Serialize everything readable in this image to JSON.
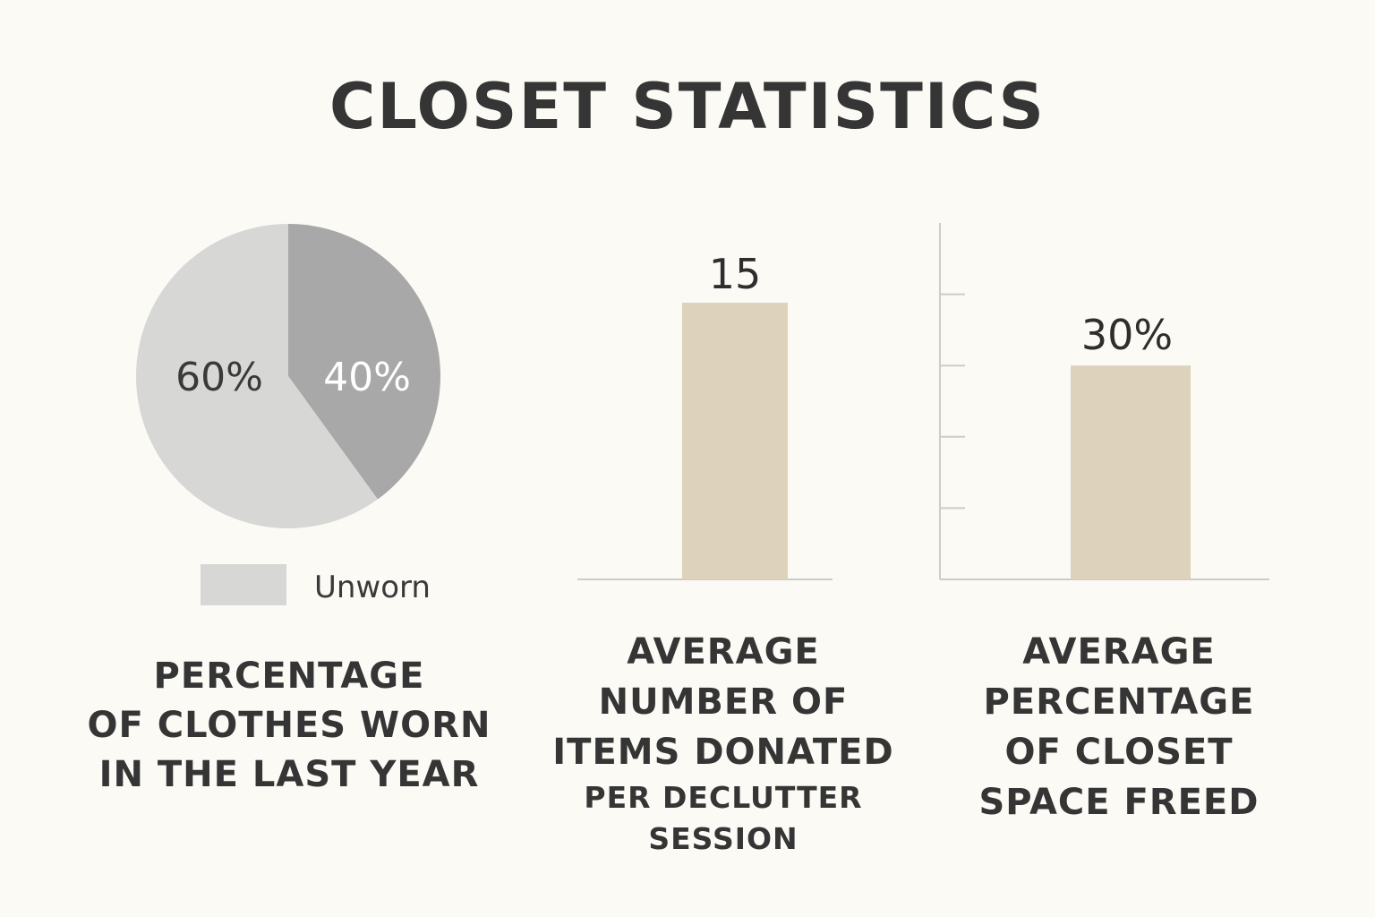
{
  "title": "CLOSET STATISTICS",
  "chart_data": [
    {
      "type": "pie",
      "slices": [
        {
          "label": "Unworn",
          "value": 60,
          "display": "60%",
          "color": "#d7d7d5"
        },
        {
          "label": "",
          "value": 40,
          "display": "40%",
          "color": "#a8a8a8"
        }
      ],
      "legend": [
        {
          "label": "Unworn",
          "color": "#d7d7d5"
        }
      ],
      "caption": [
        "PERCENTAGE",
        "OF CLOTHES WORN",
        "IN THE LAST YEAR"
      ]
    },
    {
      "type": "bar",
      "categories": [
        ""
      ],
      "values": [
        15
      ],
      "value_labels": [
        "15"
      ],
      "color": "#ddd2bc",
      "caption": [
        "AVERAGE",
        "NUMBER OF",
        "ITEMS DONATED"
      ],
      "caption_small": [
        "PER DECLUTTER",
        "SESSION"
      ]
    },
    {
      "type": "bar",
      "categories": [
        ""
      ],
      "values": [
        30
      ],
      "value_labels": [
        "30%"
      ],
      "color": "#ddd2bc",
      "ylim": [
        0,
        50
      ],
      "caption": [
        "AVERAGE",
        "PERCENTAGE",
        "OF CLOSET",
        "SPACE FREED"
      ]
    }
  ]
}
